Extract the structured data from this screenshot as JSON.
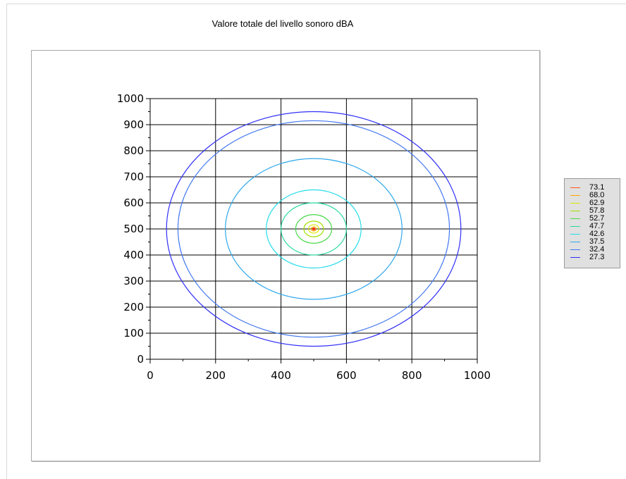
{
  "chart_data": {
    "type": "contour",
    "title": "Valore totale del livello sonoro dBA",
    "xlabel": "",
    "ylabel": "",
    "xlim": [
      0,
      1000
    ],
    "ylim": [
      0,
      1000
    ],
    "x_ticks": [
      0,
      200,
      400,
      600,
      800,
      1000
    ],
    "y_ticks": [
      0,
      100,
      200,
      300,
      400,
      500,
      600,
      700,
      800,
      900,
      1000
    ],
    "grid": true,
    "legend_position": "right",
    "source_point": {
      "x": 500,
      "y": 500
    },
    "series": [
      {
        "name": "73.1",
        "color": "#ff5a1e",
        "center": [
          500,
          500
        ],
        "rx": 3,
        "ry": 3
      },
      {
        "name": "68.0",
        "color": "#ffa800",
        "center": [
          500,
          500
        ],
        "rx": 8,
        "ry": 8
      },
      {
        "name": "62.9",
        "color": "#d8e600",
        "center": [
          500,
          500
        ],
        "rx": 16,
        "ry": 16
      },
      {
        "name": "57.8",
        "color": "#a0e000",
        "center": [
          500,
          500
        ],
        "rx": 30,
        "ry": 30
      },
      {
        "name": "52.7",
        "color": "#48d848",
        "center": [
          500,
          500
        ],
        "rx": 55,
        "ry": 55
      },
      {
        "name": "47.7",
        "color": "#28d8a0",
        "center": [
          500,
          500
        ],
        "rx": 100,
        "ry": 100
      },
      {
        "name": "42.6",
        "color": "#28dce8",
        "center": [
          500,
          500
        ],
        "rx": 145,
        "ry": 150
      },
      {
        "name": "37.5",
        "color": "#30a8ec",
        "center": [
          500,
          500
        ],
        "rx": 270,
        "ry": 270
      },
      {
        "name": "32.4",
        "color": "#4278f0",
        "center": [
          500,
          500
        ],
        "rx": 415,
        "ry": 415
      },
      {
        "name": "27.3",
        "color": "#3030f8",
        "center": [
          500,
          500
        ],
        "rx": 450,
        "ry": 450
      }
    ]
  }
}
